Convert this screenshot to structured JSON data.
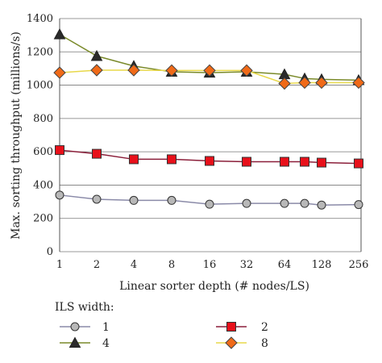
{
  "chart_data": {
    "type": "line",
    "xlabel": "Linear sorter depth (# nodes/LS)",
    "ylabel": "Max. sorting throughput (millions/s)",
    "ylim": [
      0,
      1400
    ],
    "yticks": [
      0,
      200,
      400,
      600,
      800,
      1000,
      1200,
      1400
    ],
    "x": [
      1,
      2,
      4,
      8,
      16,
      32,
      64,
      96,
      128,
      256
    ],
    "xticks": [
      "1",
      "2",
      "4",
      "8",
      "16",
      "32",
      "64",
      "128",
      "256"
    ],
    "grid": "horizontal",
    "legend_title": "ILS width:",
    "legend_position": "bottom",
    "series": [
      {
        "name": "1",
        "color": "#8a8aa8",
        "marker": "circle",
        "marker_fill": "#b8b8b8",
        "values": [
          340,
          315,
          308,
          308,
          285,
          290,
          290,
          290,
          280,
          283
        ]
      },
      {
        "name": "2",
        "color": "#8b1f3a",
        "marker": "square",
        "marker_fill": "#e8101a",
        "values": [
          610,
          588,
          555,
          555,
          545,
          540,
          540,
          540,
          535,
          530
        ]
      },
      {
        "name": "4",
        "color": "#7a8a2a",
        "marker": "triangle",
        "marker_fill": "#2a2a2a",
        "values": [
          1305,
          1175,
          1115,
          1080,
          1075,
          1080,
          1065,
          1040,
          1035,
          1030
        ]
      },
      {
        "name": "8",
        "color": "#e8d84a",
        "marker": "diamond",
        "marker_fill": "#f06a18",
        "values": [
          1075,
          1090,
          1090,
          1088,
          1088,
          1088,
          1010,
          1015,
          1015,
          1015
        ]
      }
    ]
  }
}
